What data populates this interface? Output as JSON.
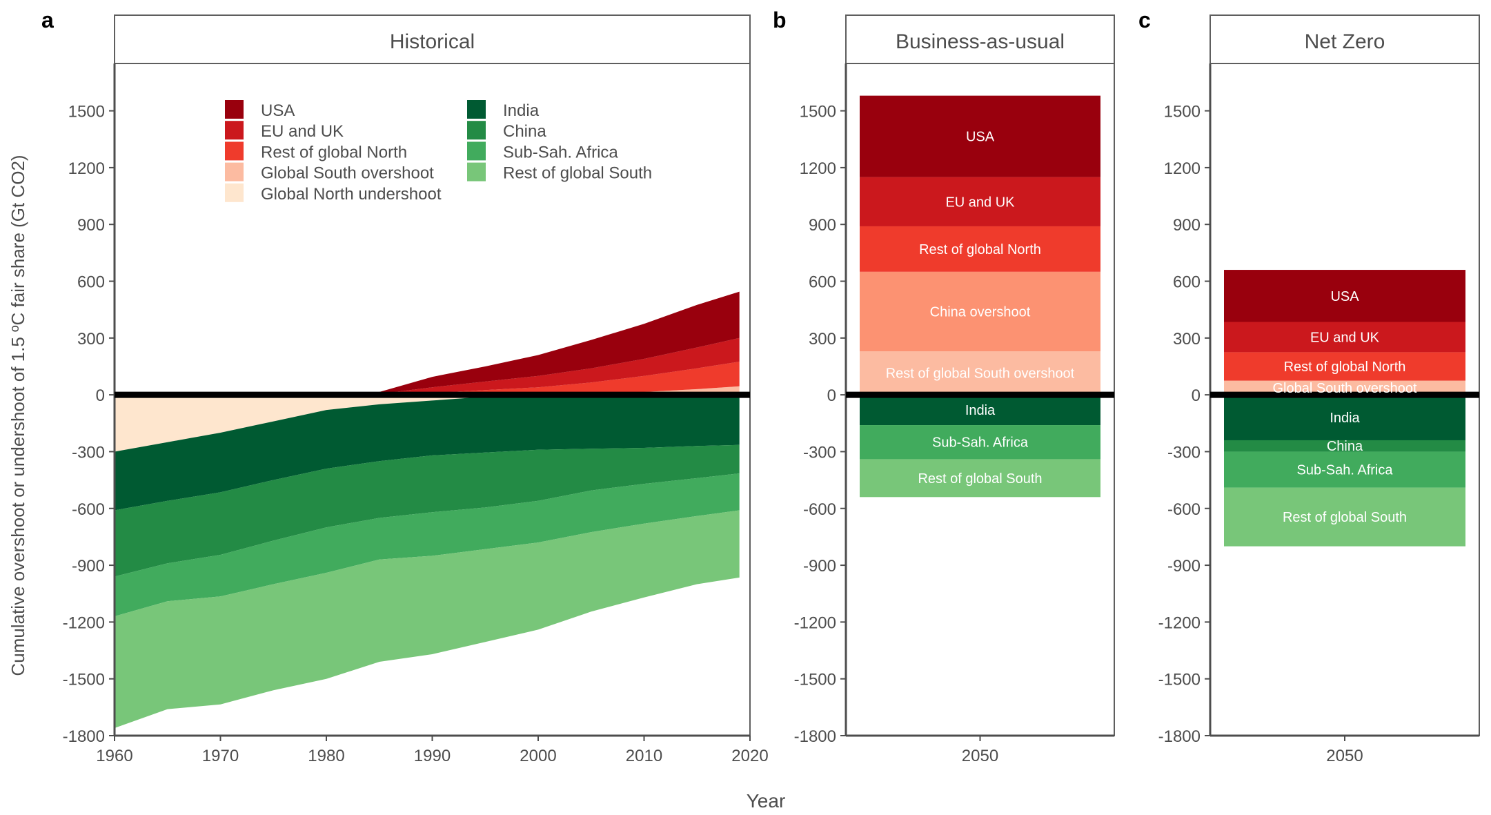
{
  "figure": {
    "ylabel": "Cumulative overshoot or undershoot of 1.5 ºC fair share (Gt CO2)",
    "xlabel": "Year",
    "y_ticks": [
      1500,
      1200,
      900,
      600,
      300,
      0,
      -300,
      -600,
      -900,
      -1200,
      -1500,
      -1800
    ]
  },
  "chart_data": [
    {
      "panel": "a",
      "title": "Historical",
      "type": "area",
      "stacked": true,
      "ylim": [
        -1800,
        1500
      ],
      "xlim": [
        1960,
        2020
      ],
      "x_ticks": [
        1960,
        1970,
        1980,
        1990,
        2000,
        2010,
        2020
      ],
      "x_tick_labels": [
        "1960",
        "1970",
        "1980",
        "1990",
        "2000",
        "2010",
        "2020"
      ],
      "zero_line": true,
      "legend": {
        "placement": "top-left inside",
        "columns": [
          [
            "USA",
            "EU and UK",
            "Rest of global North",
            "Global South overshoot",
            "Global North undershoot"
          ],
          [
            "India",
            "China",
            "Sub-Sah. Africa",
            "Rest of global South"
          ]
        ]
      },
      "x": [
        1960,
        1965,
        1970,
        1975,
        1980,
        1985,
        1990,
        1995,
        2000,
        2005,
        2010,
        2015,
        2019
      ],
      "series": [
        {
          "name": "Global South overshoot",
          "color": "#fcbba1",
          "stack": "positive",
          "values": [
            0,
            0,
            0,
            0,
            0,
            0,
            0,
            0,
            0,
            5,
            15,
            30,
            45
          ]
        },
        {
          "name": "Rest of global North",
          "color": "#ef3b2c",
          "stack": "positive",
          "values": [
            0,
            0,
            0,
            0,
            0,
            0,
            10,
            25,
            40,
            60,
            85,
            110,
            130
          ]
        },
        {
          "name": "EU and UK",
          "color": "#cb181d",
          "stack": "positive",
          "values": [
            0,
            0,
            0,
            0,
            0,
            5,
            30,
            45,
            60,
            75,
            90,
            110,
            125
          ]
        },
        {
          "name": "USA",
          "color": "#99000d",
          "stack": "positive",
          "values": [
            0,
            0,
            0,
            0,
            0,
            10,
            55,
            80,
            110,
            150,
            185,
            225,
            245
          ]
        },
        {
          "name": "Global North undershoot",
          "color": "#fee6ce",
          "stack": "negative",
          "values": [
            -300,
            -250,
            -200,
            -140,
            -80,
            -50,
            -30,
            -10,
            0,
            0,
            0,
            0,
            0
          ]
        },
        {
          "name": "India",
          "color": "#005a32",
          "stack": "negative",
          "values": [
            -310,
            -310,
            -315,
            -310,
            -310,
            -300,
            -290,
            -295,
            -290,
            -285,
            -280,
            -270,
            -265
          ]
        },
        {
          "name": "China",
          "color": "#238b45",
          "stack": "negative",
          "values": [
            -350,
            -330,
            -330,
            -320,
            -310,
            -300,
            -300,
            -290,
            -270,
            -220,
            -190,
            -170,
            -150
          ]
        },
        {
          "name": "Sub-Sah. Africa",
          "color": "#41ab5d",
          "stack": "negative",
          "values": [
            -210,
            -200,
            -220,
            -230,
            -240,
            -220,
            -230,
            -220,
            -220,
            -220,
            -210,
            -200,
            -195
          ]
        },
        {
          "name": "Rest of global South",
          "color": "#78c679",
          "stack": "negative",
          "values": [
            -590,
            -570,
            -570,
            -560,
            -560,
            -540,
            -520,
            -490,
            -460,
            -420,
            -390,
            -360,
            -355
          ]
        }
      ]
    },
    {
      "panel": "b",
      "title": "Business-as-usual",
      "type": "bar",
      "stacked": true,
      "categories": [
        "2050"
      ],
      "ylim": [
        -1800,
        1500
      ],
      "zero_line": true,
      "series": [
        {
          "name": "Rest of global South overshoot",
          "label": "Rest of global South overshoot",
          "color": "#fcbba1",
          "values": [
            230
          ]
        },
        {
          "name": "China overshoot",
          "label": "China overshoot",
          "color": "#fc9272",
          "values": [
            420
          ]
        },
        {
          "name": "Rest of global North",
          "label": "Rest of global North",
          "color": "#ef3b2c",
          "values": [
            240
          ]
        },
        {
          "name": "EU and UK",
          "label": "EU and UK",
          "color": "#cb181d",
          "values": [
            260
          ]
        },
        {
          "name": "USA",
          "label": "USA",
          "color": "#99000d",
          "values": [
            430
          ]
        },
        {
          "name": "India",
          "label": "India",
          "color": "#005a32",
          "values": [
            -160
          ]
        },
        {
          "name": "Sub-Sah. Africa",
          "label": "Sub-Sah. Africa",
          "color": "#41ab5d",
          "values": [
            -180
          ]
        },
        {
          "name": "Rest of global South",
          "label": "Rest of global South",
          "color": "#78c679",
          "values": [
            -200
          ]
        }
      ]
    },
    {
      "panel": "c",
      "title": "Net Zero",
      "type": "bar",
      "stacked": true,
      "categories": [
        "2050"
      ],
      "ylim": [
        -1800,
        1500
      ],
      "zero_line": true,
      "series": [
        {
          "name": "Global South overshoot",
          "label": "Global South overshoot",
          "color": "#fcbba1",
          "values": [
            75
          ]
        },
        {
          "name": "Rest of global North",
          "label": "Rest of global North",
          "color": "#ef3b2c",
          "values": [
            150
          ]
        },
        {
          "name": "EU and UK",
          "label": "EU and UK",
          "color": "#cb181d",
          "values": [
            160
          ]
        },
        {
          "name": "USA",
          "label": "USA",
          "color": "#99000d",
          "values": [
            275
          ]
        },
        {
          "name": "India",
          "label": "India",
          "color": "#005a32",
          "values": [
            -240
          ]
        },
        {
          "name": "China",
          "label": "China",
          "color": "#238b45",
          "values": [
            -60
          ]
        },
        {
          "name": "Sub-Sah. Africa",
          "label": "Sub-Sah. Africa",
          "color": "#41ab5d",
          "values": [
            -190
          ]
        },
        {
          "name": "Rest of global South",
          "label": "Rest of global South",
          "color": "#78c679",
          "values": [
            -310
          ]
        }
      ]
    }
  ]
}
